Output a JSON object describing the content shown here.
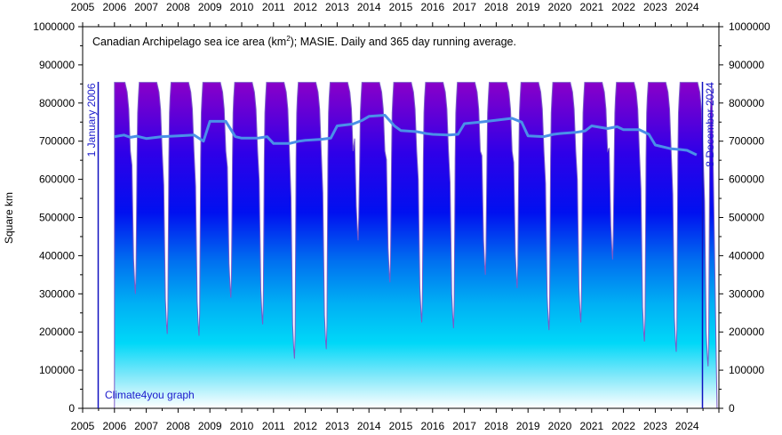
{
  "chart_data": {
    "type": "area",
    "title": "Canadian Archipelago sea ice area (km",
    "title_superscript": "2",
    "title_suffix": "); MASIE. Daily and 365 day running average.",
    "ylabel": "Square km",
    "start_label": "1 January 2006",
    "end_label": "8 December 2024",
    "credit": "Climate4you graph",
    "ylim": [
      0,
      1000000
    ],
    "xlim": [
      2005,
      2025
    ],
    "y_ticks": [
      "0",
      "100000",
      "200000",
      "300000",
      "400000",
      "500000",
      "600000",
      "700000",
      "800000",
      "900000",
      "1000000"
    ],
    "x_ticks": [
      "2005",
      "2006",
      "2007",
      "2008",
      "2009",
      "2010",
      "2011",
      "2012",
      "2013",
      "2014",
      "2015",
      "2016",
      "2017",
      "2018",
      "2019",
      "2020",
      "2021",
      "2022",
      "2023",
      "2024"
    ],
    "daily_max": 854000,
    "series": [
      {
        "name": "Daily",
        "seasonal_minimum": [
          {
            "year": 2006,
            "min": 300000
          },
          {
            "year": 2007,
            "min": 195000
          },
          {
            "year": 2008,
            "min": 190000
          },
          {
            "year": 2009,
            "min": 290000
          },
          {
            "year": 2010,
            "min": 220000
          },
          {
            "year": 2011,
            "min": 130000
          },
          {
            "year": 2012,
            "min": 155000
          },
          {
            "year": 2013,
            "min": 440000
          },
          {
            "year": 2014,
            "min": 330000
          },
          {
            "year": 2015,
            "min": 225000
          },
          {
            "year": 2016,
            "min": 210000
          },
          {
            "year": 2017,
            "min": 350000
          },
          {
            "year": 2018,
            "min": 315000
          },
          {
            "year": 2019,
            "min": 205000
          },
          {
            "year": 2020,
            "min": 225000
          },
          {
            "year": 2021,
            "min": 390000
          },
          {
            "year": 2022,
            "min": 175000
          },
          {
            "year": 2023,
            "min": 148000
          },
          {
            "year": 2024,
            "min": 110000
          }
        ]
      },
      {
        "name": "365 day running average",
        "color": "#4a90e8",
        "x": [
          2006.0,
          2006.3,
          2006.5,
          2006.7,
          2007.0,
          2007.5,
          2008.0,
          2008.5,
          2008.8,
          2009.0,
          2009.5,
          2009.8,
          2010.0,
          2010.5,
          2010.8,
          2011.0,
          2011.5,
          2011.8,
          2012.0,
          2012.5,
          2012.8,
          2013.0,
          2013.5,
          2013.8,
          2014.0,
          2014.5,
          2014.8,
          2015.0,
          2015.5,
          2015.8,
          2016.0,
          2016.5,
          2016.8,
          2017.0,
          2017.5,
          2017.8,
          2018.0,
          2018.5,
          2018.8,
          2019.0,
          2019.5,
          2019.8,
          2020.0,
          2020.5,
          2020.8,
          2021.0,
          2021.5,
          2021.8,
          2022.0,
          2022.5,
          2022.8,
          2023.0,
          2023.5,
          2023.8,
          2024.0,
          2024.3
        ],
        "values": [
          712000,
          716000,
          710000,
          713000,
          707000,
          712000,
          714000,
          716000,
          700000,
          752000,
          752000,
          712000,
          708000,
          708000,
          712000,
          694000,
          694000,
          700000,
          702000,
          705000,
          708000,
          740000,
          745000,
          755000,
          765000,
          768000,
          740000,
          728000,
          725000,
          720000,
          718000,
          716000,
          718000,
          746000,
          750000,
          753000,
          755000,
          760000,
          750000,
          714000,
          712000,
          718000,
          720000,
          723000,
          727000,
          740000,
          733000,
          738000,
          730000,
          730000,
          718000,
          690000,
          680000,
          678000,
          676000,
          664000
        ]
      }
    ]
  }
}
